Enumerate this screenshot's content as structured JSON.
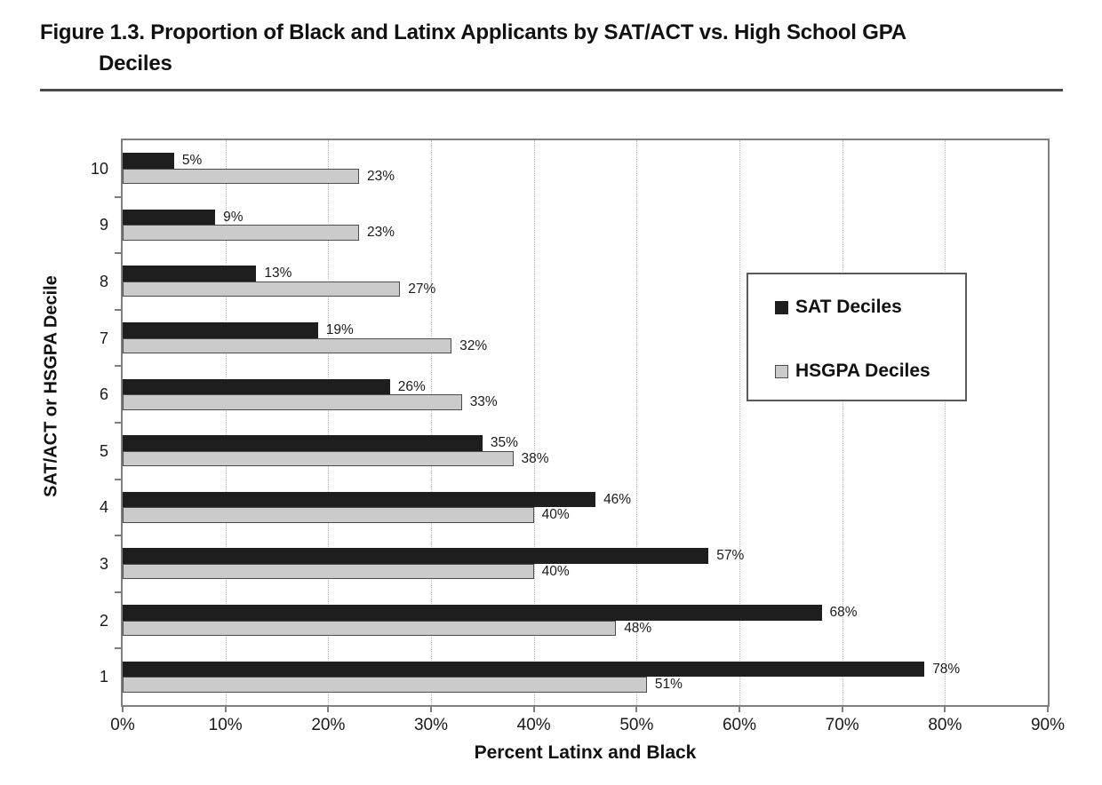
{
  "figure": {
    "title_line1": "Figure 1.3. Proportion of Black and Latinx Applicants by SAT/ACT vs. High School GPA",
    "title_line2": "Deciles"
  },
  "chart_data": {
    "type": "bar",
    "orientation": "horizontal",
    "title": "Figure 1.3. Proportion of Black and Latinx Applicants by SAT/ACT vs. High School GPA Deciles",
    "xlabel": "Percent Latinx and Black",
    "ylabel": "SAT/ACT or HSGPA Decile",
    "categories": [
      "10",
      "9",
      "8",
      "7",
      "6",
      "5",
      "4",
      "3",
      "2",
      "1"
    ],
    "series": [
      {
        "name": "SAT Deciles",
        "color": "#1e1e1e",
        "border_color": "#1e1e1e",
        "values": [
          5,
          9,
          13,
          19,
          26,
          35,
          46,
          57,
          68,
          78
        ]
      },
      {
        "name": "HSGPA Deciles",
        "color": "#cbcbcb",
        "border_color": "#4d4d4d",
        "values": [
          23,
          23,
          27,
          32,
          33,
          38,
          40,
          40,
          48,
          51
        ]
      }
    ],
    "value_labels": [
      [
        "5%",
        "9%",
        "13%",
        "19%",
        "26%",
        "35%",
        "46%",
        "57%",
        "68%",
        "78%"
      ],
      [
        "23%",
        "23%",
        "27%",
        "32%",
        "33%",
        "38%",
        "40%",
        "40%",
        "48%",
        "51%"
      ]
    ],
    "x_ticks": [
      "0%",
      "10%",
      "20%",
      "30%",
      "40%",
      "50%",
      "60%",
      "70%",
      "80%",
      "90%"
    ],
    "xlim": [
      0,
      90
    ],
    "grid": true,
    "legend_position": "inside-upper-right"
  }
}
